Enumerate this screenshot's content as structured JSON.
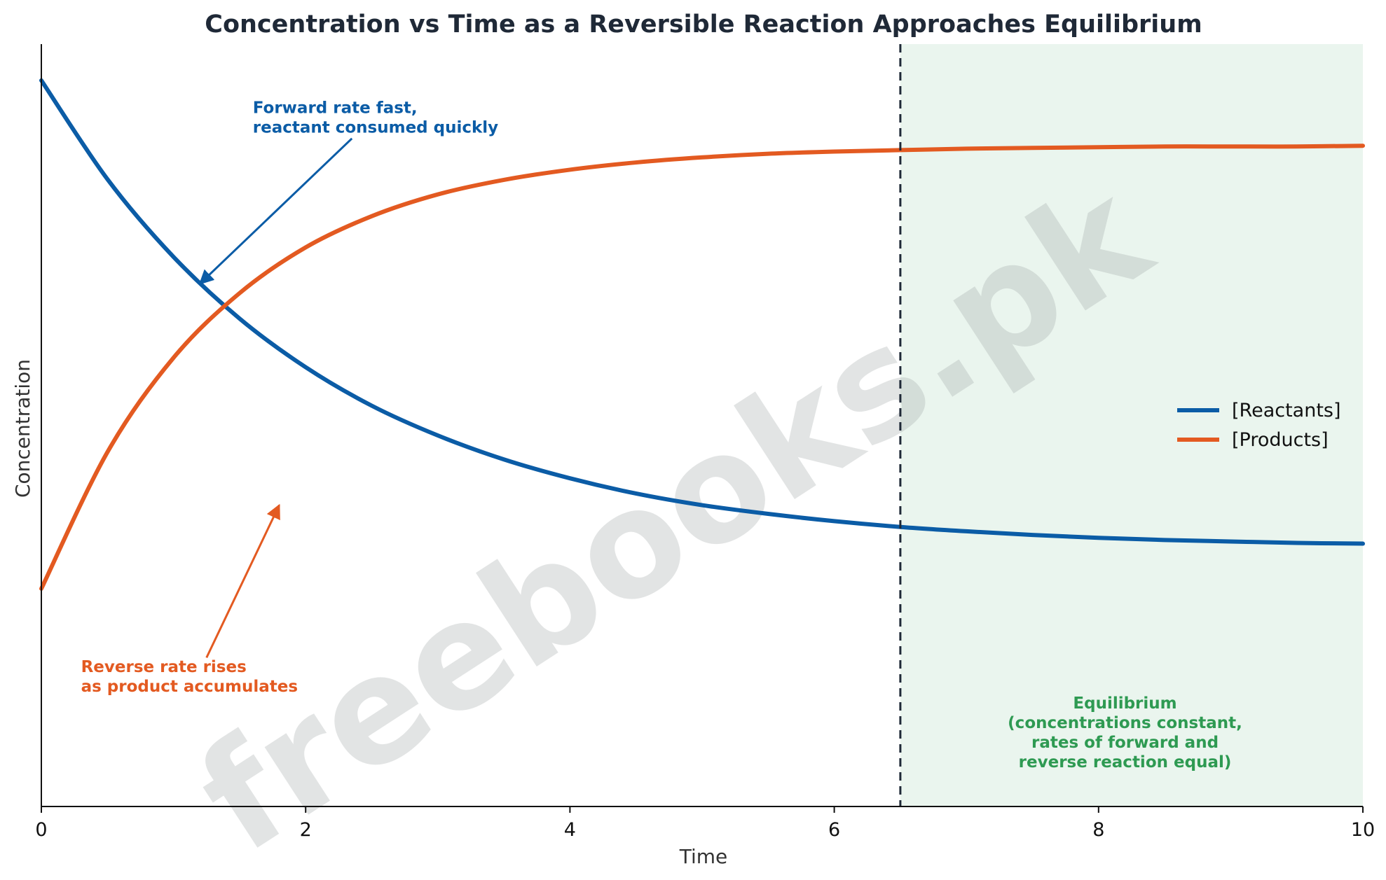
{
  "chart_data": {
    "type": "line",
    "title": "Concentration vs Time as a Reversible Reaction Approaches Equilibrium",
    "xlabel": "Time",
    "ylabel": "Concentration",
    "xlim": [
      0,
      10
    ],
    "ylim": [
      0,
      1.05
    ],
    "xticks": [
      "0",
      "2",
      "4",
      "6",
      "8",
      "10"
    ],
    "yticks_shown": false,
    "grid": false,
    "legend_position": "right",
    "equilibrium_time": 6.5,
    "series": [
      {
        "name": "[Reactants]",
        "color": "#0b5ca6",
        "x": [
          0,
          0.5,
          1,
          1.5,
          2,
          2.5,
          3,
          3.5,
          4,
          4.5,
          5,
          5.5,
          6,
          6.5,
          7,
          7.5,
          8,
          8.5,
          9,
          9.5,
          10
        ],
        "y": [
          1.0,
          0.864,
          0.757,
          0.672,
          0.605,
          0.552,
          0.511,
          0.478,
          0.452,
          0.431,
          0.415,
          0.403,
          0.393,
          0.385,
          0.379,
          0.374,
          0.37,
          0.367,
          0.365,
          0.363,
          0.362
        ]
      },
      {
        "name": "[Products]",
        "color": "#e35a21",
        "x": [
          0,
          0.5,
          1,
          1.5,
          2,
          2.5,
          3,
          3.5,
          4,
          4.5,
          5,
          5.5,
          6,
          6.5,
          7,
          7.5,
          8,
          8.5,
          9,
          9.5,
          10
        ],
        "y": [
          0.3,
          0.488,
          0.618,
          0.707,
          0.77,
          0.813,
          0.843,
          0.863,
          0.877,
          0.887,
          0.894,
          0.899,
          0.902,
          0.904,
          0.906,
          0.907,
          0.908,
          0.909,
          0.909,
          0.909,
          0.91
        ]
      }
    ],
    "annotations": [
      {
        "text": [
          "Forward rate fast,",
          "reactant consumed quickly"
        ],
        "color": "#0b5ca6",
        "text_at": [
          1.6,
          0.955
        ],
        "arrow_from": [
          2.35,
          0.92
        ],
        "arrow_to": [
          1.2,
          0.72
        ]
      },
      {
        "text": [
          "Reverse rate rises",
          "as product accumulates"
        ],
        "color": "#e35a21",
        "text_at": [
          0.3,
          0.185
        ],
        "arrow_from": [
          1.25,
          0.205
        ],
        "arrow_to": [
          1.8,
          0.415
        ]
      },
      {
        "text": [
          "Equilibrium",
          "(concentrations constant,",
          "rates of forward and",
          "reverse reaction equal)"
        ],
        "color": "#2e9a52",
        "text_at": [
          8.2,
          0.135
        ],
        "align": "center"
      }
    ],
    "equilibrium_region": {
      "from": 6.5,
      "to": 10,
      "color": "#eaf5ee"
    },
    "watermark": "freebooks.pk"
  }
}
